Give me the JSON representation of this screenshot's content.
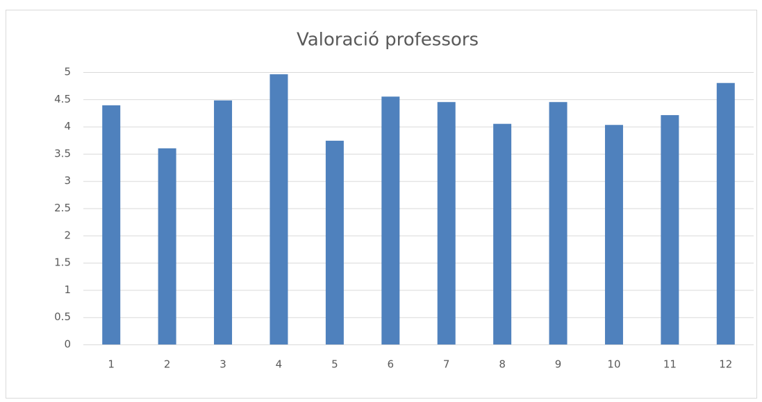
{
  "chart_data": {
    "type": "bar",
    "title": "Valoració professors",
    "categories": [
      "1",
      "2",
      "3",
      "4",
      "5",
      "6",
      "7",
      "8",
      "9",
      "10",
      "11",
      "12"
    ],
    "values": [
      4.39,
      3.6,
      4.48,
      4.96,
      3.74,
      4.55,
      4.45,
      4.05,
      4.45,
      4.03,
      4.21,
      4.8
    ],
    "color": "#4f81bd",
    "ylim": [
      0,
      5
    ],
    "yticks": [
      0,
      0.5,
      1,
      1.5,
      2,
      2.5,
      3,
      3.5,
      4,
      4.5,
      5
    ],
    "grid": true
  }
}
